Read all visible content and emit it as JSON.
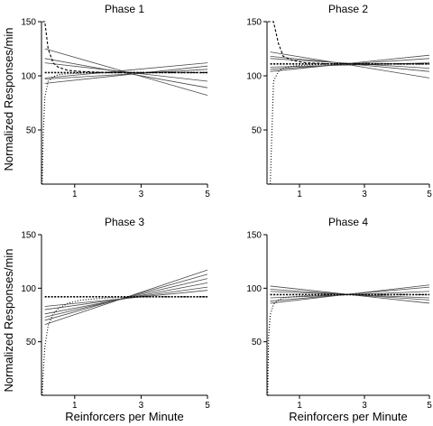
{
  "figure": {
    "ylabel": "Normalized Responses/min",
    "xlabel": "Reinforcers per Minute"
  },
  "chart_data": [
    {
      "type": "line",
      "title": "Phase 1",
      "xlim": [
        0,
        5
      ],
      "ylim": [
        0,
        150
      ],
      "xticks": [
        "1",
        "3",
        "5"
      ],
      "yticks": [
        "50",
        "100",
        "150"
      ],
      "series": [
        {
          "style": "solid",
          "x": [
            0.1,
            5
          ],
          "y": [
            125,
            82
          ]
        },
        {
          "style": "solid",
          "x": [
            0.1,
            5
          ],
          "y": [
            116,
            89
          ]
        },
        {
          "style": "solid",
          "x": [
            0.1,
            5
          ],
          "y": [
            112,
            95
          ]
        },
        {
          "style": "solid",
          "x": [
            0.1,
            5
          ],
          "y": [
            97,
            106
          ]
        },
        {
          "style": "solid",
          "x": [
            0.1,
            5
          ],
          "y": [
            93,
            109
          ]
        },
        {
          "style": "solid",
          "x": [
            0.1,
            5
          ],
          "y": [
            98,
            112
          ]
        },
        {
          "style": "dashed",
          "x": [
            0.1,
            5
          ],
          "y": [
            103,
            103
          ]
        },
        {
          "style": "dotted",
          "x": [
            0.02,
            0.05,
            0.1,
            0.2,
            0.35,
            0.5,
            0.8,
            1.2,
            2,
            3,
            5
          ],
          "y": [
            0,
            45,
            80,
            95,
            99,
            101,
            102,
            102.5,
            103,
            103,
            103
          ]
        },
        {
          "style": "dashed-curve",
          "x": [
            0.02,
            0.05,
            0.1,
            0.2,
            0.35,
            0.5,
            0.8,
            1.2,
            2,
            3,
            5
          ],
          "y": [
            150,
            150,
            150,
            125,
            112,
            108,
            105,
            104,
            103,
            103,
            103
          ]
        }
      ]
    },
    {
      "type": "line",
      "title": "Phase 2",
      "xlim": [
        0,
        5
      ],
      "ylim": [
        0,
        150
      ],
      "xticks": [
        "1",
        "3",
        "5"
      ],
      "yticks": [
        "50",
        "100",
        "150"
      ],
      "series": [
        {
          "style": "solid",
          "x": [
            0.1,
            5
          ],
          "y": [
            122,
            98
          ]
        },
        {
          "style": "solid",
          "x": [
            0.1,
            5
          ],
          "y": [
            118,
            104
          ]
        },
        {
          "style": "solid",
          "x": [
            0.1,
            5
          ],
          "y": [
            116,
            107
          ]
        },
        {
          "style": "solid",
          "x": [
            0.1,
            5
          ],
          "y": [
            106,
            116
          ]
        },
        {
          "style": "solid",
          "x": [
            0.1,
            5
          ],
          "y": [
            104,
            119
          ]
        },
        {
          "style": "solid",
          "x": [
            0.1,
            5
          ],
          "y": [
            108,
            112
          ]
        },
        {
          "style": "dashed",
          "x": [
            0.1,
            5
          ],
          "y": [
            111,
            111
          ]
        },
        {
          "style": "dotted",
          "x": [
            0.02,
            0.05,
            0.1,
            0.2,
            0.35,
            0.5,
            0.8,
            1.2,
            2,
            3,
            5
          ],
          "y": [
            0,
            0,
            0,
            95,
            104,
            107,
            109,
            110,
            111,
            111,
            111
          ]
        },
        {
          "style": "dashed-curve",
          "x": [
            0.02,
            0.05,
            0.1,
            0.2,
            0.35,
            0.5,
            0.8,
            1.2,
            2,
            3,
            5
          ],
          "y": [
            150,
            150,
            150,
            150,
            130,
            118,
            114,
            112,
            111,
            111,
            111
          ]
        }
      ]
    },
    {
      "type": "line",
      "title": "Phase 3",
      "xlim": [
        0,
        5
      ],
      "ylim": [
        0,
        150
      ],
      "xticks": [
        "1",
        "3",
        "5"
      ],
      "yticks": [
        "50",
        "100",
        "150"
      ],
      "series": [
        {
          "style": "solid",
          "x": [
            0.1,
            5
          ],
          "y": [
            66,
            117
          ]
        },
        {
          "style": "solid",
          "x": [
            0.1,
            5
          ],
          "y": [
            70,
            113
          ]
        },
        {
          "style": "solid",
          "x": [
            0.1,
            5
          ],
          "y": [
            73,
            109
          ]
        },
        {
          "style": "solid",
          "x": [
            0.1,
            5
          ],
          "y": [
            76,
            105
          ]
        },
        {
          "style": "solid",
          "x": [
            0.1,
            5
          ],
          "y": [
            80,
            101
          ]
        },
        {
          "style": "solid",
          "x": [
            0.1,
            5
          ],
          "y": [
            83,
            98
          ]
        },
        {
          "style": "dashed",
          "x": [
            0.1,
            5
          ],
          "y": [
            92,
            92
          ]
        },
        {
          "style": "dotted",
          "x": [
            0.02,
            0.05,
            0.1,
            0.2,
            0.35,
            0.5,
            0.8,
            1.2,
            2,
            3,
            5
          ],
          "y": [
            0,
            20,
            45,
            65,
            76,
            81,
            86,
            89,
            91,
            92,
            92
          ]
        }
      ]
    },
    {
      "type": "line",
      "title": "Phase 4",
      "xlim": [
        0,
        5
      ],
      "ylim": [
        0,
        150
      ],
      "xticks": [
        "1",
        "3",
        "5"
      ],
      "yticks": [
        "50",
        "100",
        "150"
      ],
      "series": [
        {
          "style": "solid",
          "x": [
            0.1,
            5
          ],
          "y": [
            102,
            86
          ]
        },
        {
          "style": "solid",
          "x": [
            0.1,
            5
          ],
          "y": [
            99,
            89
          ]
        },
        {
          "style": "solid",
          "x": [
            0.1,
            5
          ],
          "y": [
            97,
            91
          ]
        },
        {
          "style": "solid",
          "x": [
            0.1,
            5
          ],
          "y": [
            88,
            101
          ]
        },
        {
          "style": "solid",
          "x": [
            0.1,
            5
          ],
          "y": [
            86,
            103
          ]
        },
        {
          "style": "solid",
          "x": [
            0.1,
            5
          ],
          "y": [
            91,
            97
          ]
        },
        {
          "style": "dashed",
          "x": [
            0.1,
            5
          ],
          "y": [
            94,
            94
          ]
        },
        {
          "style": "dotted",
          "x": [
            0.02,
            0.05,
            0.1,
            0.2,
            0.35,
            0.5,
            0.8,
            1.2,
            2,
            3,
            5
          ],
          "y": [
            0,
            55,
            75,
            85,
            89,
            91,
            92,
            93,
            94,
            94,
            94
          ]
        }
      ]
    }
  ]
}
